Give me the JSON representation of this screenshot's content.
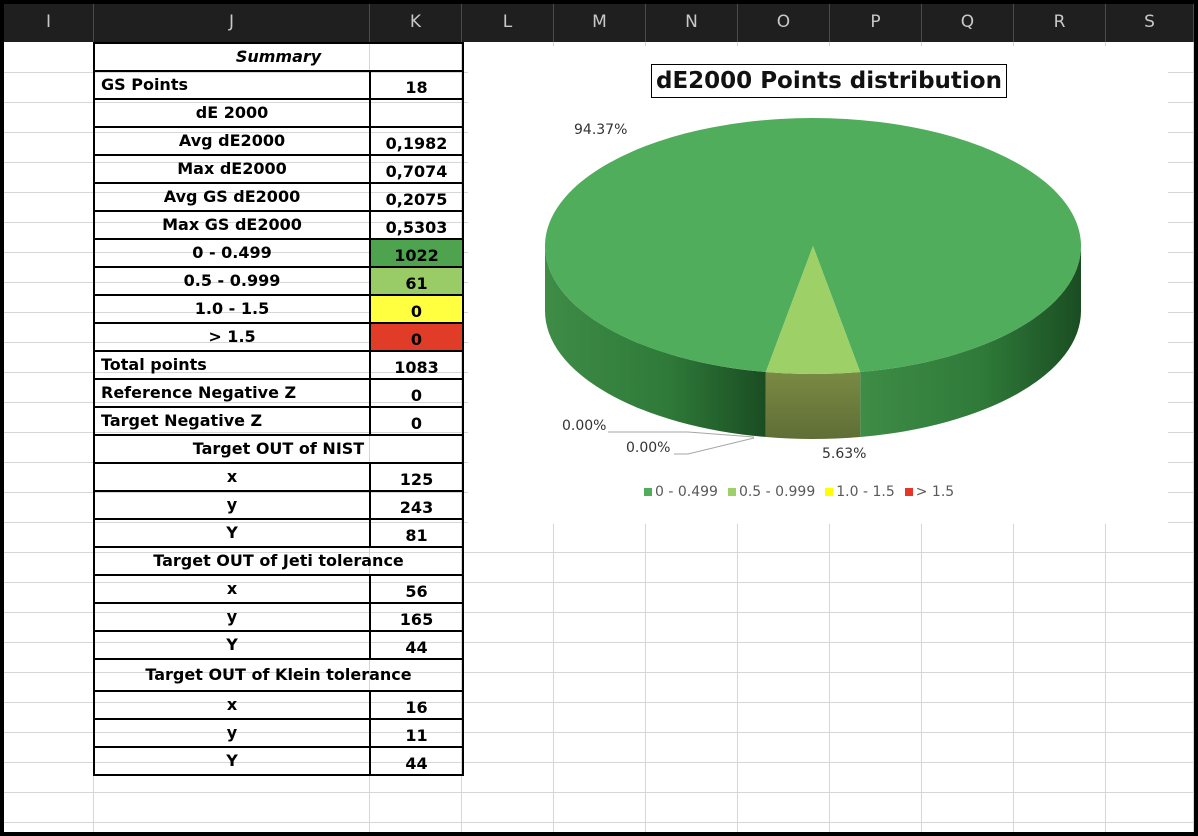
{
  "column_headers": [
    "I",
    "J",
    "K",
    "L",
    "M",
    "N",
    "O",
    "P",
    "Q",
    "R",
    "S"
  ],
  "summary": {
    "title": "Summary",
    "gs_points_label": "GS Points",
    "gs_points_value": "18",
    "de2000_header": "dE 2000",
    "stats": [
      {
        "label": "Avg dE2000",
        "value": "0,1982"
      },
      {
        "label": "Max dE2000",
        "value": "0,7074"
      },
      {
        "label": "Avg GS dE2000",
        "value": "0,2075"
      },
      {
        "label": "Max GS dE2000",
        "value": "0,5303"
      }
    ],
    "buckets": [
      {
        "label": "0 - 0.499",
        "value": "1022",
        "color": "#4ea34e"
      },
      {
        "label": "0.5 - 0.999",
        "value": "61",
        "color": "#99cc66"
      },
      {
        "label": "1.0 - 1.5",
        "value": "0",
        "color": "#ffff40"
      },
      {
        "label": "> 1.5",
        "value": "0",
        "color": "#e03c28"
      }
    ],
    "total_label": "Total points",
    "total_value": "1083",
    "ref_neg_label": "Reference Negative Z",
    "ref_neg_value": "0",
    "tgt_neg_label": "Target Negative Z",
    "tgt_neg_value": "0",
    "nist": {
      "header": "Target OUT of NIST",
      "rows": [
        {
          "label": "x",
          "value": "125"
        },
        {
          "label": "y",
          "value": "243"
        },
        {
          "label": "Y",
          "value": "81"
        }
      ]
    },
    "jeti": {
      "header": "Target OUT of Jeti tolerance",
      "rows": [
        {
          "label": "x",
          "value": "56"
        },
        {
          "label": "y",
          "value": "165"
        },
        {
          "label": "Y",
          "value": "44"
        }
      ]
    },
    "klein": {
      "header": "Target OUT of Klein tolerance",
      "rows": [
        {
          "label": "x",
          "value": "16"
        },
        {
          "label": "y",
          "value": "11"
        },
        {
          "label": "Y",
          "value": "44"
        }
      ]
    }
  },
  "chart_data": {
    "type": "pie",
    "title": "dE2000 Points distribution",
    "categories": [
      "0 - 0.499",
      "0.5 - 0.999",
      "1.0 - 1.5",
      "> 1.5"
    ],
    "values": [
      1022,
      61,
      0,
      0
    ],
    "data_labels": [
      "94.37%",
      "5.63%",
      "0.00%",
      "0.00%"
    ],
    "colors": [
      "#4fad5b",
      "#9dd067",
      "#ffff00",
      "#e8352a"
    ],
    "legend": "bottom"
  }
}
